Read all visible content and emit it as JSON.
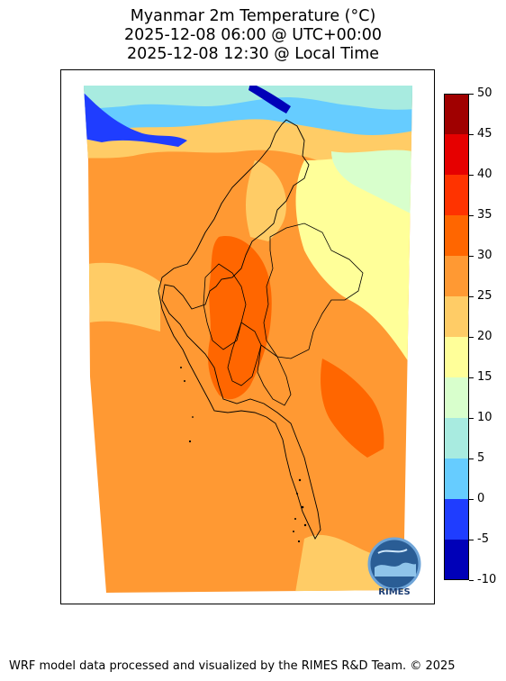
{
  "title": {
    "line1": "Myanmar 2m Temperature (°C)",
    "line2": "2025-12-08 06:00 @ UTC+00:00",
    "line3": "2025-12-08 12:30 @ Local Time"
  },
  "colorbar": {
    "levels": [
      -10,
      -5,
      0,
      5,
      10,
      15,
      20,
      25,
      30,
      35,
      40,
      45,
      50
    ],
    "labels": [
      "50",
      "45",
      "40",
      "35",
      "30",
      "25",
      "20",
      "15",
      "10",
      "5",
      "0",
      "-5",
      "-10"
    ],
    "colors": [
      "#0000b8",
      "#1f3dff",
      "#66ccff",
      "#a8ebe0",
      "#d8ffcc",
      "#ffff99",
      "#ffcc66",
      "#ff9933",
      "#ff6600",
      "#ff3300",
      "#e60000",
      "#a00000"
    ]
  },
  "map": {
    "region": "Myanmar",
    "variable": "2m Temperature",
    "unit": "°C"
  },
  "logo": {
    "text": "RIMES"
  },
  "footer": {
    "credit": "WRF model data processed and visualized by the RIMES R&D Team. © 2025"
  }
}
